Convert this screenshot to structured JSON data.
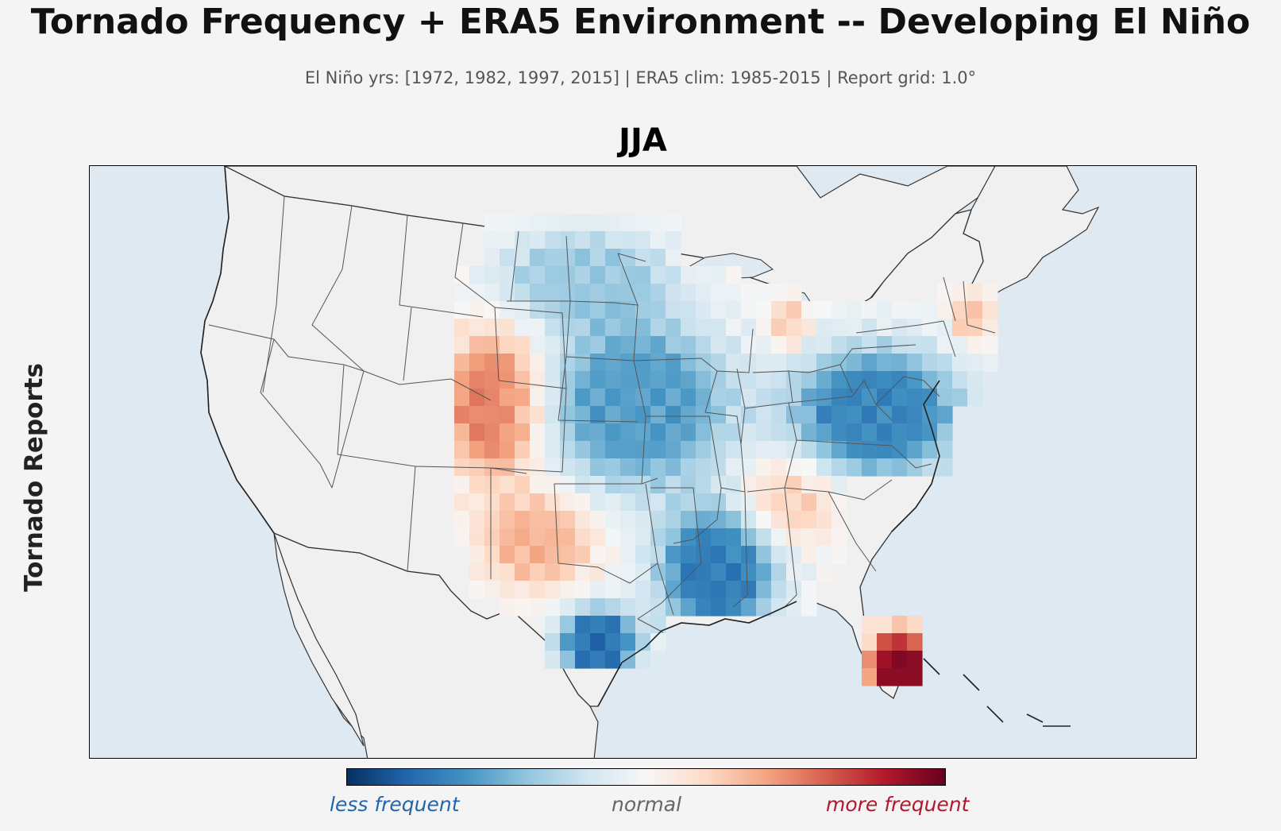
{
  "header": {
    "title": "Tornado Frequency + ERA5 Environment -- Developing El Niño",
    "subtitle": "El Niño yrs: [1972, 1982, 1997, 2015]  |  ERA5 clim: 1985-2015  |  Report grid: 1.0°"
  },
  "panel": {
    "title": "JJA",
    "ylabel": "Tornado Reports"
  },
  "map": {
    "region": "Contiguous United States",
    "land_color": "#f0f0f0",
    "ocean_color": "#dfe9f2",
    "anomaly_regions": [
      {
        "name": "Colorado / Wyoming front range",
        "anomaly": 0.55
      },
      {
        "name": "Texas panhandle / New Mexico",
        "anomaly": 0.35
      },
      {
        "name": "Tennessee / Alabama",
        "anomaly": 0.3
      },
      {
        "name": "Florida peninsula",
        "anomaly": 0.9
      },
      {
        "name": "Michigan lower peninsula",
        "anomaly": 0.3
      },
      {
        "name": "New England",
        "anomaly": 0.3
      },
      {
        "name": "Northern Plains",
        "anomaly": -0.35
      },
      {
        "name": "Central Plains / Midwest",
        "anomaly": -0.55
      },
      {
        "name": "Lower Mississippi Valley",
        "anomaly": -0.7
      },
      {
        "name": "Mid-Atlantic / Ohio Valley",
        "anomaly": -0.65
      },
      {
        "name": "South Texas",
        "anomaly": -0.75
      }
    ]
  },
  "colorbar": {
    "colormap": "RdBu_r",
    "colors": [
      "#053061",
      "#2166ac",
      "#4393c3",
      "#92c5de",
      "#d1e5f0",
      "#f7f7f7",
      "#fddbc7",
      "#f4a582",
      "#d6604d",
      "#b2182b",
      "#67001f"
    ],
    "low_label": "less frequent",
    "mid_label": "normal",
    "high_label": "more frequent",
    "low_color": "#2166ac",
    "mid_color": "#666666",
    "high_color": "#b2182b"
  }
}
